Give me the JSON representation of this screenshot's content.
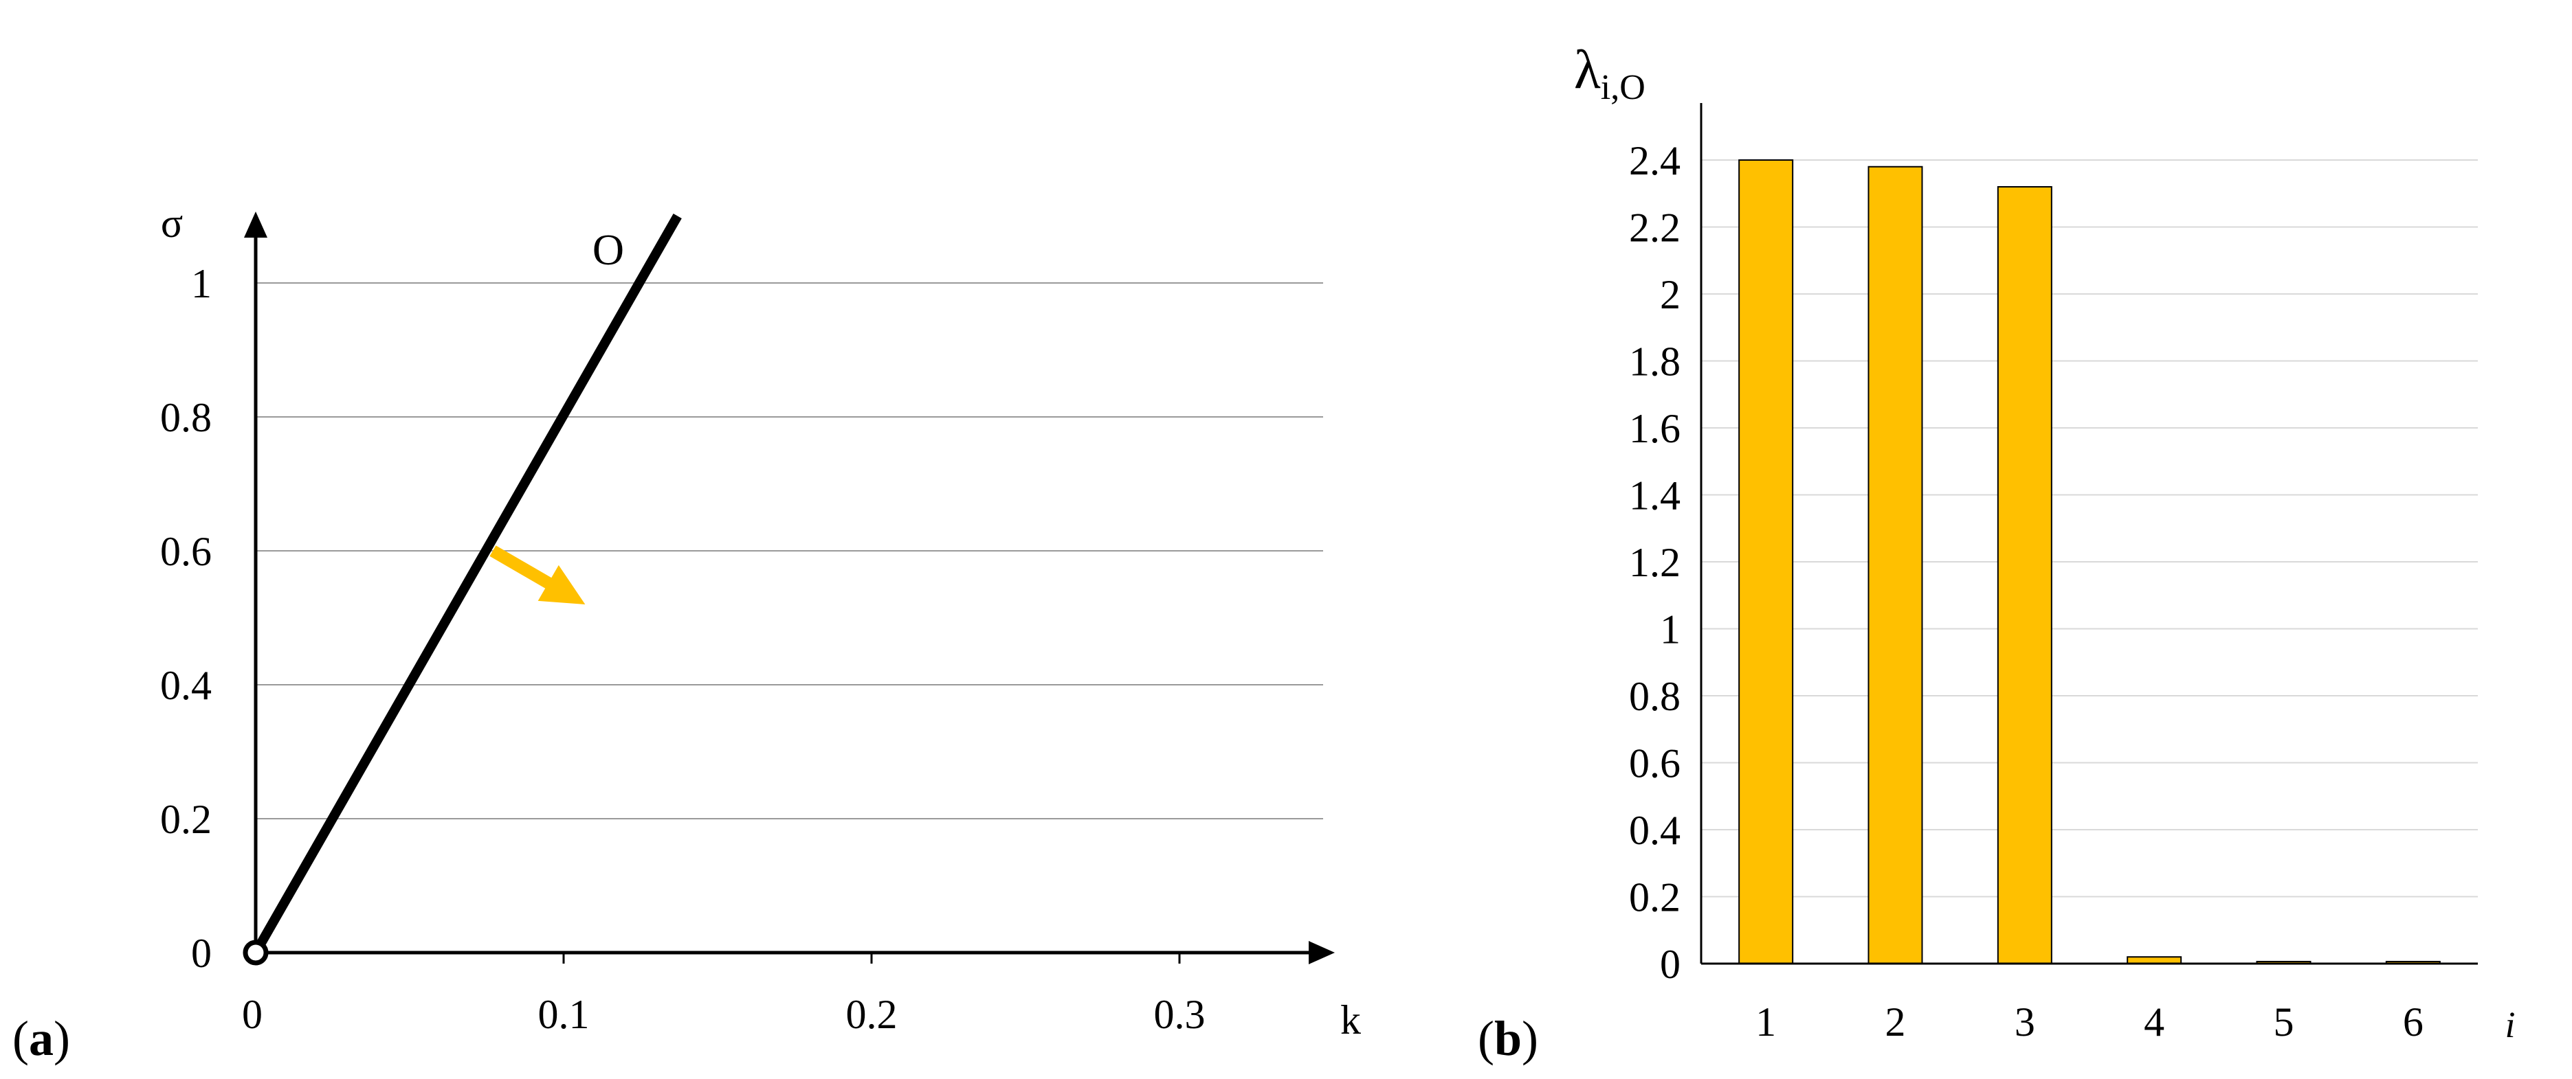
{
  "panels": {
    "a": {
      "label_open": "(",
      "label_letter": "a",
      "label_close": ")"
    },
    "b": {
      "label_open": "(",
      "label_letter": "b",
      "label_close": ")"
    }
  },
  "chart_data": [
    {
      "type": "line",
      "title": "",
      "xlabel": "k",
      "ylabel": "σ",
      "xlim": [
        0,
        0.35
      ],
      "ylim": [
        0,
        1.1
      ],
      "x_ticks": [
        "0",
        "0.1",
        "0.2",
        "0.3"
      ],
      "y_ticks": [
        "0",
        "0.2",
        "0.4",
        "0.6",
        "0.8",
        "1"
      ],
      "grid": true,
      "series": [
        {
          "name": "O",
          "color": "#000000",
          "points": [
            [
              0,
              0
            ],
            [
              0.137,
              1.1
            ]
          ]
        }
      ],
      "origin_marker": [
        0,
        0
      ],
      "arrow": {
        "from": [
          0.077,
          0.6
        ],
        "to": [
          0.107,
          0.52
        ],
        "color": "#FFC000"
      }
    },
    {
      "type": "bar",
      "title": "",
      "xlabel": "i",
      "ylabel_main": "λ",
      "ylabel_sub": "i,O",
      "categories": [
        "1",
        "2",
        "3",
        "4",
        "5",
        "6"
      ],
      "values": [
        2.4,
        2.38,
        2.32,
        0.02,
        0.005,
        0.005
      ],
      "ylim": [
        0,
        2.4
      ],
      "y_ticks": [
        "0",
        "0.2",
        "0.4",
        "0.6",
        "0.8",
        "1",
        "1.2",
        "1.4",
        "1.6",
        "1.8",
        "2",
        "2.2",
        "2.4"
      ],
      "grid": true,
      "bar_color": "#FFC000",
      "bar_edge": "#000000"
    }
  ]
}
